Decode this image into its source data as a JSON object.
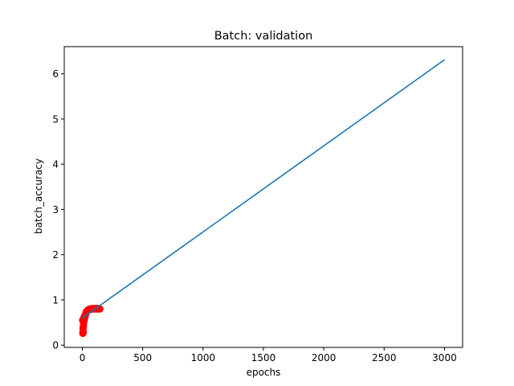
{
  "chart_data": {
    "type": "scatter",
    "title": "Batch: validation",
    "xlabel": "epochs",
    "ylabel": "batch_accuracy",
    "xlim": [
      -150,
      3150
    ],
    "ylim": [
      -0.05,
      6.6
    ],
    "x_ticks": [
      0,
      500,
      1000,
      1500,
      2000,
      2500,
      3000
    ],
    "y_ticks": [
      0,
      1,
      2,
      3,
      4,
      5,
      6
    ],
    "grid": false,
    "legend": "none",
    "colors": {
      "points": "#ff0000",
      "trend": "#1f77b4"
    },
    "series": [
      {
        "kind": "points",
        "x": [
          2,
          4,
          5,
          6,
          7,
          8,
          9,
          10,
          11,
          12,
          13,
          14,
          16,
          18,
          20,
          22,
          25,
          28,
          30,
          33,
          36,
          40,
          44,
          48,
          52,
          56,
          60,
          65,
          70,
          75,
          80,
          85,
          90,
          95,
          100,
          105,
          110,
          115,
          120,
          125,
          130,
          135,
          140,
          145
        ],
        "y": [
          0.55,
          0.26,
          0.3,
          0.35,
          0.4,
          0.28,
          0.45,
          0.5,
          0.56,
          0.6,
          0.58,
          0.62,
          0.55,
          0.6,
          0.65,
          0.62,
          0.66,
          0.7,
          0.72,
          0.74,
          0.73,
          0.76,
          0.77,
          0.78,
          0.78,
          0.79,
          0.8,
          0.8,
          0.79,
          0.8,
          0.81,
          0.8,
          0.81,
          0.8,
          0.81,
          0.8,
          0.81,
          0.81,
          0.8,
          0.81,
          0.8,
          0.81,
          0.8,
          0.8
        ]
      },
      {
        "kind": "line",
        "x": [
          0,
          3000
        ],
        "y": [
          0.6,
          6.31
        ]
      }
    ]
  }
}
